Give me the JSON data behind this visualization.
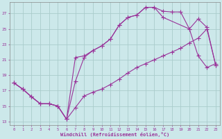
{
  "xlabel": "Windchill (Refroidissement éolien,°C)",
  "bg_color": "#cce8ea",
  "grid_color": "#aacccc",
  "line_color": "#993399",
  "xlim": [
    -0.5,
    23.5
  ],
  "ylim": [
    12.5,
    28.5
  ],
  "yticks": [
    13,
    15,
    17,
    19,
    21,
    23,
    25,
    27
  ],
  "xticks": [
    0,
    1,
    2,
    3,
    4,
    5,
    6,
    7,
    8,
    9,
    10,
    11,
    12,
    13,
    14,
    15,
    16,
    17,
    18,
    19,
    20,
    21,
    22,
    23
  ],
  "line1_x": [
    0,
    1,
    2,
    3,
    4,
    5,
    6,
    7,
    8,
    9,
    10,
    11,
    12,
    13,
    14,
    15,
    16,
    17,
    18,
    19,
    20,
    21,
    22,
    23
  ],
  "line1_y": [
    18.0,
    17.2,
    16.2,
    15.3,
    15.3,
    15.0,
    13.3,
    18.2,
    21.3,
    22.2,
    22.8,
    23.7,
    25.5,
    26.5,
    26.8,
    27.8,
    27.8,
    27.3,
    27.2,
    27.2,
    25.0,
    21.5,
    20.0,
    20.5
  ],
  "line2_x": [
    0,
    1,
    2,
    3,
    4,
    5,
    6,
    7,
    8,
    9,
    10,
    11,
    12,
    13,
    14,
    15,
    16,
    17,
    18,
    19,
    20,
    21,
    22,
    23
  ],
  "line2_y": [
    18.0,
    17.2,
    16.2,
    15.3,
    15.3,
    15.0,
    13.3,
    14.8,
    16.3,
    16.8,
    17.2,
    17.8,
    18.5,
    19.3,
    20.0,
    20.5,
    21.0,
    21.5,
    22.0,
    22.5,
    23.2,
    23.8,
    25.0,
    20.3
  ],
  "line3_x": [
    0,
    1,
    2,
    3,
    4,
    5,
    6,
    7,
    8,
    9,
    10,
    11,
    12,
    13,
    14,
    15,
    16,
    17,
    20,
    21,
    22,
    23
  ],
  "line3_y": [
    18.0,
    17.2,
    16.2,
    15.3,
    15.3,
    15.0,
    13.3,
    21.3,
    21.5,
    22.2,
    22.8,
    23.7,
    25.5,
    26.5,
    26.8,
    27.8,
    27.8,
    26.5,
    25.0,
    26.3,
    25.2,
    20.3
  ]
}
